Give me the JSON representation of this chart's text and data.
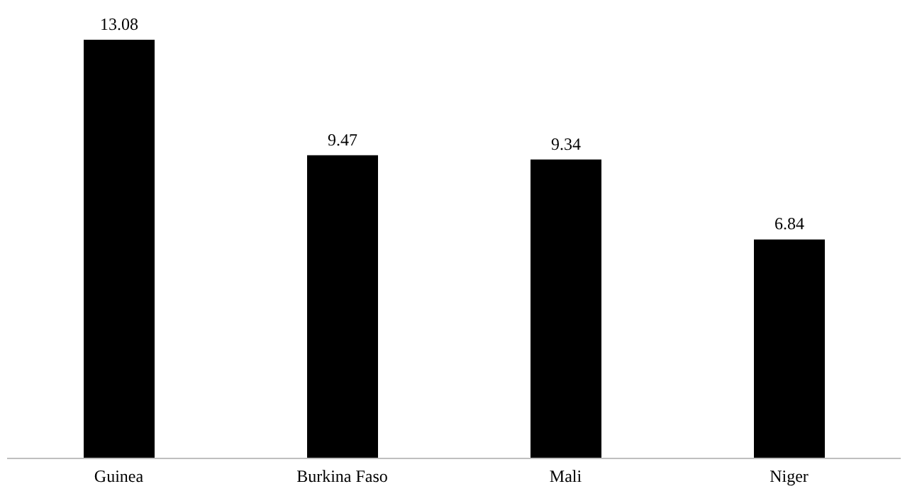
{
  "chart_data": {
    "type": "bar",
    "categories": [
      "Guinea",
      "Burkina Faso",
      "Mali",
      "Niger"
    ],
    "values": [
      13.08,
      9.47,
      9.34,
      6.84
    ],
    "color": "#000000",
    "data_labels": true
  }
}
